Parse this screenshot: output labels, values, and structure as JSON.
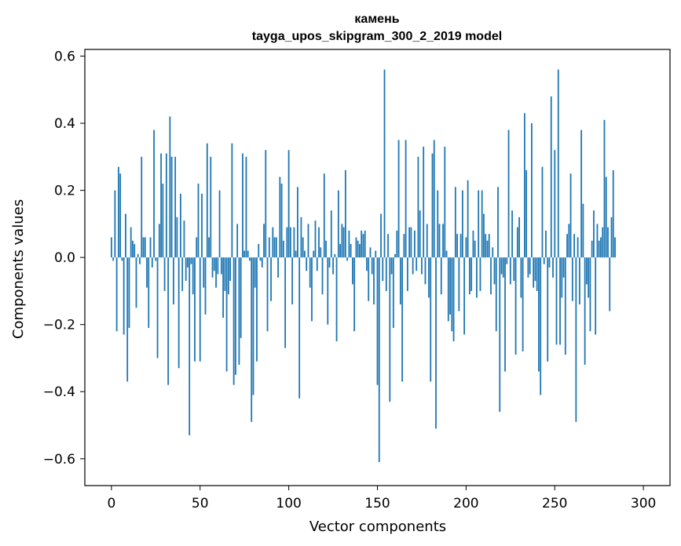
{
  "chart_data": {
    "type": "bar",
    "title": "камень",
    "subtitle": "tayga_upos_skipgram_300_2_2019 model",
    "xlabel": "Vector components",
    "ylabel": "Components values",
    "xlim": [
      -15,
      315
    ],
    "ylim": [
      -0.68,
      0.62
    ],
    "xticks": [
      0,
      50,
      100,
      150,
      200,
      250,
      300
    ],
    "xtick_labels": [
      "0",
      "50",
      "100",
      "150",
      "200",
      "250",
      "300"
    ],
    "yticks": [
      -0.6,
      -0.4,
      -0.2,
      0.0,
      0.2,
      0.4,
      0.6
    ],
    "ytick_labels": [
      "−0.6",
      "−0.4",
      "−0.2",
      "0.0",
      "0.2",
      "0.4",
      "0.6"
    ],
    "bar_color": "#1f77b4",
    "grid": false,
    "values": [
      0.06,
      -0.01,
      0.2,
      -0.22,
      0.27,
      0.25,
      -0.01,
      -0.23,
      0.13,
      -0.37,
      -0.21,
      0.09,
      0.05,
      0.04,
      -0.15,
      0.01,
      -0.02,
      0.3,
      0.06,
      0.06,
      -0.09,
      -0.21,
      0.06,
      -0.03,
      0.38,
      -0.01,
      -0.3,
      0.1,
      0.31,
      0.22,
      -0.1,
      0.31,
      -0.38,
      0.42,
      0.3,
      -0.14,
      0.3,
      0.12,
      -0.33,
      0.19,
      -0.1,
      0.11,
      -0.07,
      -0.03,
      -0.53,
      -0.02,
      -0.11,
      -0.31,
      0.06,
      0.22,
      -0.31,
      0.19,
      -0.09,
      -0.17,
      0.34,
      0.06,
      0.3,
      -0.06,
      -0.04,
      -0.09,
      -0.05,
      0.2,
      -0.05,
      -0.18,
      -0.1,
      -0.34,
      -0.11,
      -0.07,
      0.34,
      -0.38,
      -0.35,
      0.1,
      -0.32,
      -0.24,
      0.31,
      0.02,
      0.3,
      0.02,
      -0.01,
      -0.49,
      -0.41,
      -0.09,
      -0.31,
      0.04,
      -0.01,
      -0.03,
      0.1,
      0.32,
      -0.22,
      0.06,
      -0.13,
      0.09,
      0.06,
      0.06,
      -0.06,
      0.24,
      0.22,
      0.05,
      -0.27,
      0.09,
      0.32,
      0.09,
      -0.14,
      0.09,
      0.02,
      0.21,
      -0.42,
      0.12,
      0.06,
      0.02,
      -0.04,
      0.1,
      -0.09,
      -0.19,
      0.02,
      0.11,
      -0.04,
      0.09,
      0.03,
      -0.11,
      0.25,
      0.05,
      -0.2,
      -0.03,
      0.14,
      -0.05,
      0.01,
      -0.25,
      0.2,
      0.04,
      0.1,
      0.09,
      0.26,
      -0.01,
      0.08,
      0.04,
      -0.08,
      -0.22,
      0.06,
      0.05,
      0.04,
      0.08,
      0.07,
      0.08,
      -0.04,
      -0.13,
      0.03,
      -0.05,
      -0.14,
      0.02,
      -0.38,
      -0.61,
      0.13,
      -0.07,
      0.56,
      -0.1,
      0.07,
      -0.43,
      -0.05,
      -0.21,
      0.01,
      0.08,
      0.35,
      -0.14,
      -0.37,
      0.07,
      0.35,
      -0.1,
      0.09,
      0.09,
      -0.05,
      0.08,
      -0.04,
      0.3,
      0.14,
      -0.05,
      0.33,
      -0.08,
      0.1,
      -0.12,
      -0.37,
      0.31,
      0.35,
      -0.51,
      0.2,
      0.1,
      -0.11,
      0.1,
      0.33,
      0.02,
      -0.19,
      -0.17,
      -0.22,
      -0.25,
      0.21,
      0.07,
      -0.16,
      0.07,
      0.2,
      -0.23,
      0.06,
      0.23,
      -0.11,
      -0.1,
      0.08,
      0.05,
      -0.12,
      0.2,
      -0.1,
      0.2,
      0.13,
      0.07,
      0.05,
      0.07,
      -0.11,
      0.03,
      -0.08,
      -0.22,
      0.21,
      -0.46,
      -0.05,
      -0.06,
      -0.34,
      -0.02,
      0.38,
      -0.08,
      0.14,
      -0.07,
      -0.29,
      0.09,
      0.12,
      -0.12,
      -0.28,
      0.43,
      0.26,
      -0.06,
      -0.05,
      0.4,
      -0.09,
      -0.07,
      -0.1,
      -0.34,
      -0.41,
      0.27,
      -0.02,
      0.08,
      -0.31,
      -0.03,
      0.48,
      -0.06,
      0.32,
      -0.26,
      0.56,
      -0.26,
      -0.12,
      -0.06,
      -0.29,
      0.07,
      0.1,
      0.25,
      -0.13,
      0.07,
      -0.49,
      0.06,
      -0.14,
      0.38,
      0.16,
      -0.32,
      -0.08,
      -0.12,
      -0.22,
      0.05,
      0.14,
      -0.23,
      0.1,
      0.05,
      0.06,
      0.09,
      0.41,
      0.24,
      0.09,
      -0.16,
      0.12,
      0.26,
      0.06
    ]
  }
}
